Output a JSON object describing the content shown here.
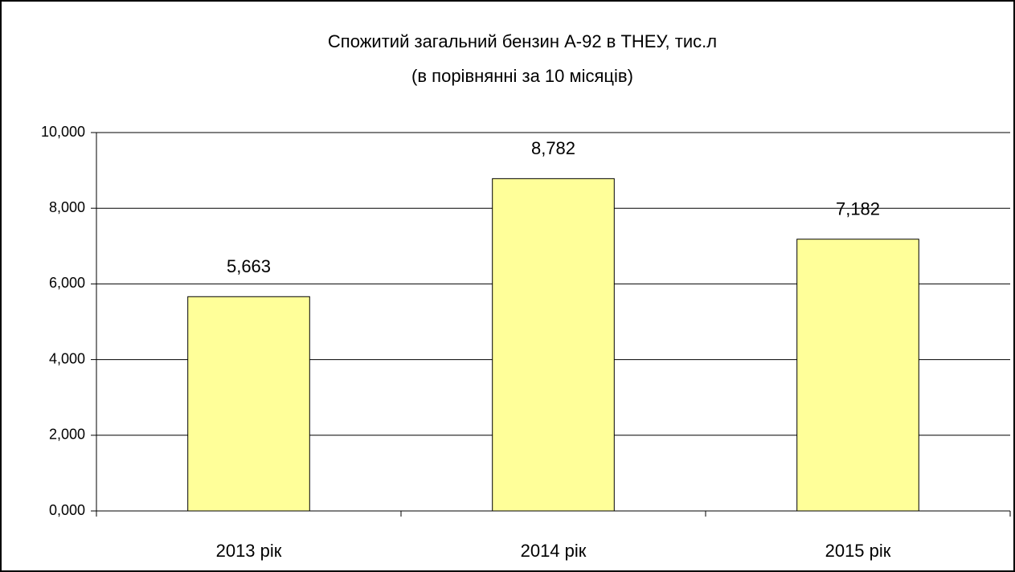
{
  "chart_data": {
    "type": "bar",
    "title": "Спожитий загальний бензин А-92 в ТНЕУ, тис.л",
    "subtitle": "(в порівнянні за 10 місяців)",
    "categories": [
      "2013 рік",
      "2014 рік",
      "2015 рік"
    ],
    "values": [
      5.663,
      8.782,
      7.182
    ],
    "value_labels": [
      "5,663",
      "8,782",
      "7,182"
    ],
    "color": "#ffff99",
    "ylim": [
      0,
      10
    ],
    "yticks": [
      {
        "value": 0,
        "label": "0,000"
      },
      {
        "value": 2,
        "label": "2,000"
      },
      {
        "value": 4,
        "label": "4,000"
      },
      {
        "value": 6,
        "label": "6,000"
      },
      {
        "value": 8,
        "label": "8,000"
      },
      {
        "value": 10,
        "label": "10,000"
      }
    ],
    "grid": true
  }
}
